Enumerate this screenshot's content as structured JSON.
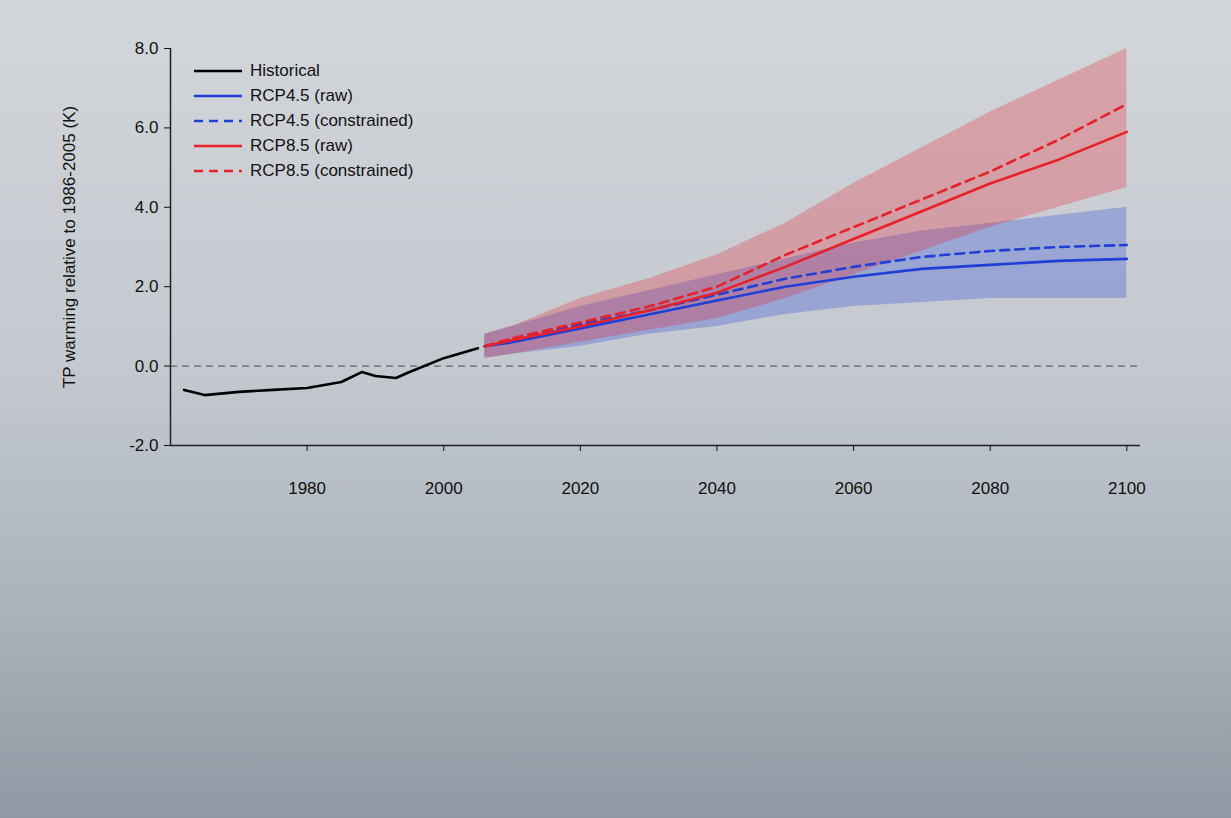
{
  "chart_data": {
    "type": "line",
    "ylabel": "TP warming relative to 1986-2005 (K)",
    "xlim": [
      1960,
      2102
    ],
    "xticks": [
      1980,
      2000,
      2020,
      2040,
      2060,
      2080,
      2100
    ],
    "ylim": [
      -2,
      8
    ],
    "yticks": [
      {
        "value": -2,
        "label": "-2.0"
      },
      {
        "value": 0,
        "label": "0.0"
      },
      {
        "value": 2,
        "label": "2.0"
      },
      {
        "value": 4,
        "label": "4.0"
      },
      {
        "value": 6,
        "label": "6.0"
      },
      {
        "value": 8,
        "label": "8.0"
      }
    ],
    "reference_line": 0,
    "grid": false,
    "legend": "upper left",
    "series": [
      {
        "name": "Historical",
        "color": "#000000",
        "line_style": "solid",
        "x": [
          1962,
          1965,
          1970,
          1975,
          1980,
          1985,
          1988,
          1990,
          1993,
          1995,
          2000,
          2005
        ],
        "values": [
          -0.6,
          -0.73,
          -0.65,
          -0.6,
          -0.55,
          -0.4,
          -0.15,
          -0.25,
          -0.3,
          -0.15,
          0.2,
          0.45
        ]
      },
      {
        "name": "RCP4.5 (raw)",
        "color": "#1f3fd6",
        "line_style": "solid",
        "x": [
          2006,
          2010,
          2020,
          2030,
          2040,
          2050,
          2060,
          2070,
          2080,
          2090,
          2100
        ],
        "values": [
          0.5,
          0.6,
          0.95,
          1.3,
          1.65,
          2.0,
          2.25,
          2.45,
          2.55,
          2.65,
          2.7
        ],
        "range_low": [
          0.2,
          0.3,
          0.5,
          0.8,
          1.0,
          1.3,
          1.5,
          1.6,
          1.7,
          1.7,
          1.7
        ],
        "range_high": [
          0.8,
          1.0,
          1.5,
          1.9,
          2.3,
          2.7,
          3.1,
          3.4,
          3.6,
          3.8,
          4.0
        ]
      },
      {
        "name": "RCP4.5 (constrained)",
        "color": "#1f3fd6",
        "line_style": "dashed",
        "x": [
          2006,
          2010,
          2020,
          2030,
          2040,
          2050,
          2060,
          2070,
          2080,
          2090,
          2100
        ],
        "values": [
          0.5,
          0.65,
          1.05,
          1.4,
          1.8,
          2.2,
          2.5,
          2.75,
          2.9,
          3.0,
          3.05
        ]
      },
      {
        "name": "RCP8.5 (raw)",
        "color": "#e8202a",
        "line_style": "solid",
        "x": [
          2006,
          2010,
          2020,
          2030,
          2040,
          2050,
          2060,
          2070,
          2080,
          2090,
          2100
        ],
        "values": [
          0.5,
          0.65,
          1.0,
          1.4,
          1.85,
          2.5,
          3.2,
          3.9,
          4.6,
          5.2,
          5.9
        ],
        "range_low": [
          0.2,
          0.3,
          0.6,
          0.9,
          1.2,
          1.7,
          2.3,
          2.9,
          3.5,
          4.0,
          4.5
        ],
        "range_high": [
          0.8,
          1.0,
          1.7,
          2.2,
          2.8,
          3.6,
          4.6,
          5.5,
          6.4,
          7.2,
          8.0
        ]
      },
      {
        "name": "RCP8.5 (constrained)",
        "color": "#e8202a",
        "line_style": "dashed",
        "x": [
          2006,
          2010,
          2020,
          2030,
          2040,
          2050,
          2060,
          2070,
          2080,
          2090,
          2100
        ],
        "values": [
          0.5,
          0.7,
          1.1,
          1.5,
          2.0,
          2.8,
          3.5,
          4.2,
          4.9,
          5.7,
          6.6
        ]
      }
    ]
  }
}
